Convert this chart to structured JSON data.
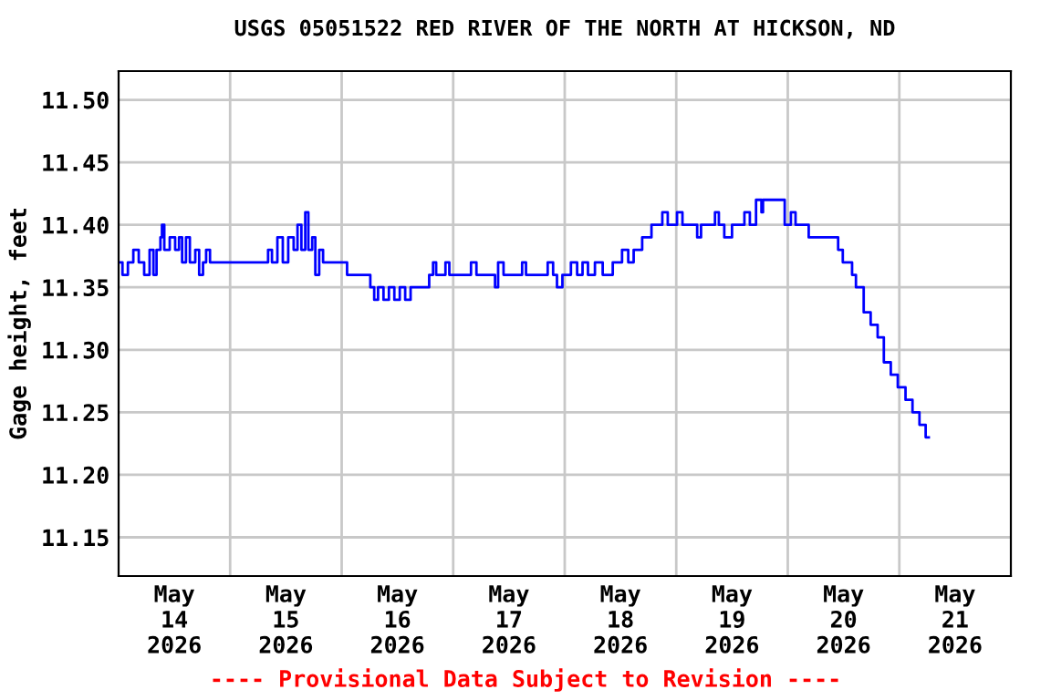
{
  "chart_data": {
    "type": "step",
    "title": "USGS 05051522 RED RIVER OF THE NORTH AT HICKSON, ND",
    "ylabel": "Gage height, feet",
    "annotations": [
      "---- Provisional Data Subject to Revision ----"
    ],
    "x": [
      "2026-05-14T00:00",
      "2026-05-14T00:50",
      "2026-05-14T02:00",
      "2026-05-14T03:10",
      "2026-05-14T04:20",
      "2026-05-14T05:30",
      "2026-05-14T06:40",
      "2026-05-14T07:30",
      "2026-05-14T08:10",
      "2026-05-14T09:00",
      "2026-05-14T09:20",
      "2026-05-14T09:50",
      "2026-05-14T11:00",
      "2026-05-14T12:10",
      "2026-05-14T13:00",
      "2026-05-14T13:40",
      "2026-05-14T14:30",
      "2026-05-14T15:20",
      "2026-05-14T16:30",
      "2026-05-14T17:20",
      "2026-05-14T18:10",
      "2026-05-14T18:50",
      "2026-05-14T19:40",
      "2026-05-15T08:10",
      "2026-05-15T09:00",
      "2026-05-15T10:10",
      "2026-05-15T11:20",
      "2026-05-15T12:30",
      "2026-05-15T13:40",
      "2026-05-15T14:30",
      "2026-05-15T15:20",
      "2026-05-15T16:10",
      "2026-05-15T16:50",
      "2026-05-15T17:40",
      "2026-05-15T18:20",
      "2026-05-15T19:10",
      "2026-05-15T20:00",
      "2026-05-16T01:10",
      "2026-05-16T06:10",
      "2026-05-16T07:00",
      "2026-05-16T07:50",
      "2026-05-16T09:00",
      "2026-05-16T10:10",
      "2026-05-16T11:20",
      "2026-05-16T12:30",
      "2026-05-16T13:40",
      "2026-05-16T14:50",
      "2026-05-16T18:50",
      "2026-05-16T19:40",
      "2026-05-16T20:20",
      "2026-05-16T22:20",
      "2026-05-16T23:10",
      "2026-05-17T03:50",
      "2026-05-17T05:00",
      "2026-05-17T09:00",
      "2026-05-17T09:40",
      "2026-05-17T10:50",
      "2026-05-17T14:50",
      "2026-05-17T15:40",
      "2026-05-17T20:20",
      "2026-05-17T21:30",
      "2026-05-17T22:20",
      "2026-05-17T23:30",
      "2026-05-18T01:20",
      "2026-05-18T02:40",
      "2026-05-18T03:50",
      "2026-05-18T05:00",
      "2026-05-18T06:30",
      "2026-05-18T08:10",
      "2026-05-18T10:20",
      "2026-05-18T12:20",
      "2026-05-18T13:40",
      "2026-05-18T14:50",
      "2026-05-18T16:40",
      "2026-05-18T18:40",
      "2026-05-18T21:00",
      "2026-05-18T22:10",
      "2026-05-19T00:10",
      "2026-05-19T01:20",
      "2026-05-19T04:30",
      "2026-05-19T05:20",
      "2026-05-19T08:20",
      "2026-05-19T09:10",
      "2026-05-19T10:20",
      "2026-05-19T12:00",
      "2026-05-19T14:40",
      "2026-05-19T15:50",
      "2026-05-19T17:10",
      "2026-05-19T18:20",
      "2026-05-19T18:40",
      "2026-05-19T23:20",
      "2026-05-20T00:40",
      "2026-05-20T01:40",
      "2026-05-20T04:30",
      "2026-05-20T10:50",
      "2026-05-20T11:50",
      "2026-05-20T13:50",
      "2026-05-20T14:40",
      "2026-05-20T16:20",
      "2026-05-20T17:50",
      "2026-05-20T19:20",
      "2026-05-20T20:40",
      "2026-05-20T22:10",
      "2026-05-20T23:40",
      "2026-05-21T01:20",
      "2026-05-21T02:50",
      "2026-05-21T04:20",
      "2026-05-21T05:40",
      "2026-05-21T06:20"
    ],
    "series": [
      {
        "color": "#0000ff",
        "values": [
          11.37,
          11.36,
          11.37,
          11.38,
          11.37,
          11.36,
          11.38,
          11.36,
          11.38,
          11.39,
          11.4,
          11.38,
          11.39,
          11.38,
          11.39,
          11.37,
          11.39,
          11.37,
          11.38,
          11.36,
          11.37,
          11.38,
          11.37,
          11.38,
          11.37,
          11.39,
          11.37,
          11.39,
          11.38,
          11.4,
          11.38,
          11.41,
          11.38,
          11.39,
          11.36,
          11.38,
          11.37,
          11.36,
          11.35,
          11.34,
          11.35,
          11.34,
          11.35,
          11.34,
          11.35,
          11.34,
          11.35,
          11.36,
          11.37,
          11.36,
          11.37,
          11.36,
          11.37,
          11.36,
          11.35,
          11.37,
          11.36,
          11.37,
          11.36,
          11.37,
          11.36,
          11.35,
          11.36,
          11.37,
          11.36,
          11.37,
          11.36,
          11.37,
          11.36,
          11.37,
          11.38,
          11.37,
          11.38,
          11.39,
          11.4,
          11.41,
          11.4,
          11.41,
          11.4,
          11.39,
          11.4,
          11.41,
          11.4,
          11.39,
          11.4,
          11.41,
          11.4,
          11.42,
          11.41,
          11.42,
          11.4,
          11.41,
          11.4,
          11.39,
          11.38,
          11.37,
          11.36,
          11.35,
          11.33,
          11.32,
          11.31,
          11.29,
          11.28,
          11.27,
          11.26,
          11.25,
          11.24,
          11.23,
          11.23
        ]
      }
    ],
    "xlim": [
      "2026-05-14",
      "2026-05-22"
    ],
    "xticks": [
      {
        "value": "2026-05-14T12:00",
        "label": "May\n14\n2026"
      },
      {
        "value": "2026-05-15T12:00",
        "label": "May\n15\n2026"
      },
      {
        "value": "2026-05-16T12:00",
        "label": "May\n16\n2026"
      },
      {
        "value": "2026-05-17T12:00",
        "label": "May\n17\n2026"
      },
      {
        "value": "2026-05-18T12:00",
        "label": "May\n18\n2026"
      },
      {
        "value": "2026-05-19T12:00",
        "label": "May\n19\n2026"
      },
      {
        "value": "2026-05-20T12:00",
        "label": "May\n20\n2026"
      },
      {
        "value": "2026-05-21T12:00",
        "label": "May\n21\n2026"
      },
      {
        "value": "2026-05-15",
        "label": null
      },
      {
        "value": "2026-05-16",
        "label": null
      },
      {
        "value": "2026-05-17",
        "label": null
      },
      {
        "value": "2026-05-18",
        "label": null
      },
      {
        "value": "2026-05-19",
        "label": null
      },
      {
        "value": "2026-05-20",
        "label": null
      },
      {
        "value": "2026-05-21",
        "label": null
      }
    ],
    "ylim": [
      11.119,
      11.523
    ],
    "yticks": [
      {
        "value": 11.15,
        "label": "11.15"
      },
      {
        "value": 11.2,
        "label": "11.20"
      },
      {
        "value": 11.25,
        "label": "11.25"
      },
      {
        "value": 11.3,
        "label": "11.30"
      },
      {
        "value": 11.35,
        "label": "11.35"
      },
      {
        "value": 11.4,
        "label": "11.40"
      },
      {
        "value": 11.45,
        "label": "11.45"
      },
      {
        "value": 11.5,
        "label": "11.50"
      }
    ],
    "grid": true
  }
}
